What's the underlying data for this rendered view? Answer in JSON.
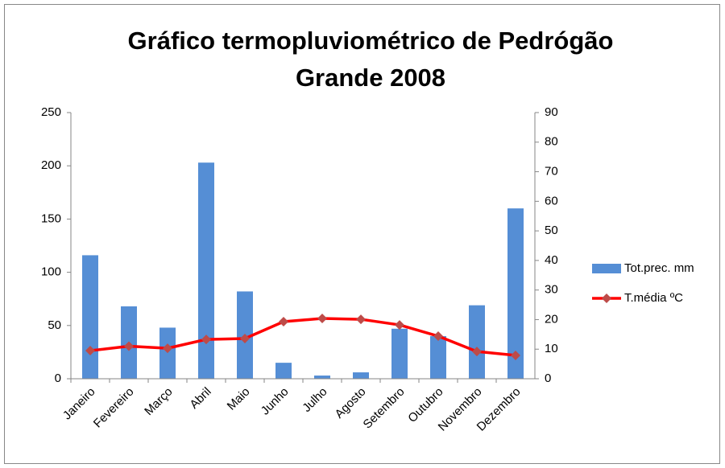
{
  "chart_data": {
    "type": "bar-line",
    "title": "Gráfico termopluviométrico de Pedrógão Grande 2008",
    "categories": [
      "Janeiro",
      "Fevereiro",
      "Março",
      "Abril",
      "Maio",
      "Junho",
      "Julho",
      "Agosto",
      "Setembro",
      "Outubro",
      "Novembro",
      "Dezembro"
    ],
    "series": [
      {
        "name": "Tot.prec. mm",
        "type": "bar",
        "color": "#558ed5",
        "values": [
          116,
          68,
          48,
          203,
          82,
          15,
          3,
          6,
          47,
          40,
          69,
          160
        ]
      },
      {
        "name": "T.média ºC",
        "type": "line",
        "axis": "y2",
        "color": "#ff0000",
        "marker_color": "#be4b48",
        "values": [
          9.5,
          11,
          10.3,
          13.3,
          13.6,
          19.3,
          20.4,
          20.1,
          18.2,
          14.4,
          9.2,
          7.9
        ]
      }
    ],
    "ylim": [
      0,
      250
    ],
    "yticks": [
      0,
      50,
      100,
      150,
      200,
      250
    ],
    "y2lim": [
      0,
      90
    ],
    "y2ticks": [
      0,
      10,
      20,
      30,
      40,
      50,
      60,
      70,
      80,
      90
    ],
    "grid": false,
    "legend": "right"
  }
}
